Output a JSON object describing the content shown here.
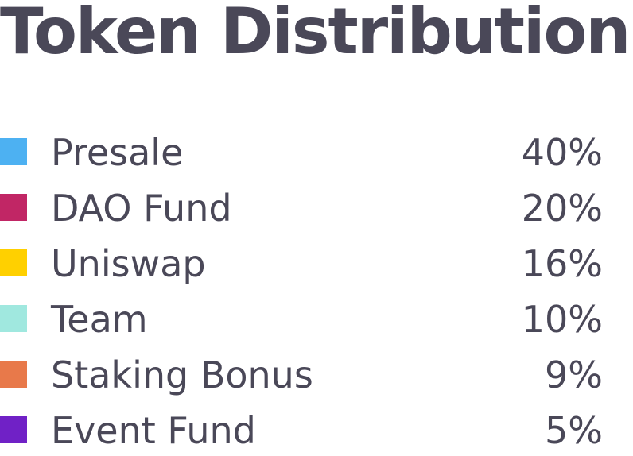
{
  "chart_data": {
    "type": "table",
    "title": "Token Distribution",
    "categories": [
      "Presale",
      "DAO Fund",
      "Uniswap",
      "Team",
      "Staking Bonus",
      "Event Fund"
    ],
    "values": [
      40,
      20,
      16,
      10,
      9,
      5
    ],
    "value_labels": [
      "40%",
      "20%",
      "16%",
      "10%",
      "9%",
      "5%"
    ],
    "colors": [
      "#4db1f2",
      "#c12665",
      "#ffd000",
      "#a0e8df",
      "#e8794a",
      "#7021c6"
    ]
  }
}
